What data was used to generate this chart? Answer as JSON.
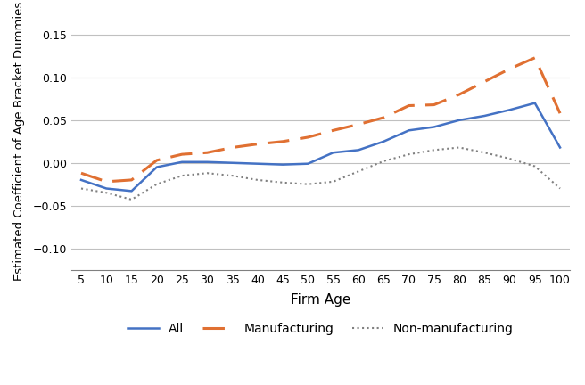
{
  "x": [
    5,
    10,
    15,
    20,
    25,
    30,
    35,
    40,
    45,
    50,
    55,
    60,
    65,
    70,
    75,
    80,
    85,
    90,
    95,
    100
  ],
  "all": [
    -0.02,
    -0.03,
    -0.033,
    -0.005,
    0.001,
    0.001,
    0.0,
    -0.001,
    -0.002,
    -0.001,
    0.012,
    0.015,
    0.025,
    0.038,
    0.042,
    0.05,
    0.055,
    0.062,
    0.07,
    0.018
  ],
  "manufacturing": [
    -0.012,
    -0.022,
    -0.02,
    0.003,
    0.01,
    0.012,
    0.018,
    0.022,
    0.025,
    0.03,
    0.038,
    0.045,
    0.053,
    0.067,
    0.068,
    0.08,
    0.095,
    0.11,
    0.123,
    0.058
  ],
  "nonmanufacturing": [
    -0.03,
    -0.035,
    -0.043,
    -0.025,
    -0.015,
    -0.012,
    -0.015,
    -0.02,
    -0.023,
    -0.025,
    -0.022,
    -0.01,
    0.002,
    0.01,
    0.015,
    0.018,
    0.012,
    0.005,
    -0.004,
    -0.03
  ],
  "all_color": "#4472C4",
  "manufacturing_color": "#E07032",
  "nonmanufacturing_color": "#808080",
  "xlabel": "Firm Age",
  "ylabel": "Estimated Coefficient of Age Bracket Dummies",
  "ylim": [
    -0.125,
    0.175
  ],
  "yticks": [
    -0.1,
    -0.05,
    0.0,
    0.05,
    0.1,
    0.15
  ],
  "xticks": [
    5,
    10,
    15,
    20,
    25,
    30,
    35,
    40,
    45,
    50,
    55,
    60,
    65,
    70,
    75,
    80,
    85,
    90,
    95,
    100
  ],
  "legend_labels": [
    "All",
    "Manufacturing",
    "Non-manufacturing"
  ],
  "background_color": "#ffffff",
  "grid_color": "#c0c0c0"
}
